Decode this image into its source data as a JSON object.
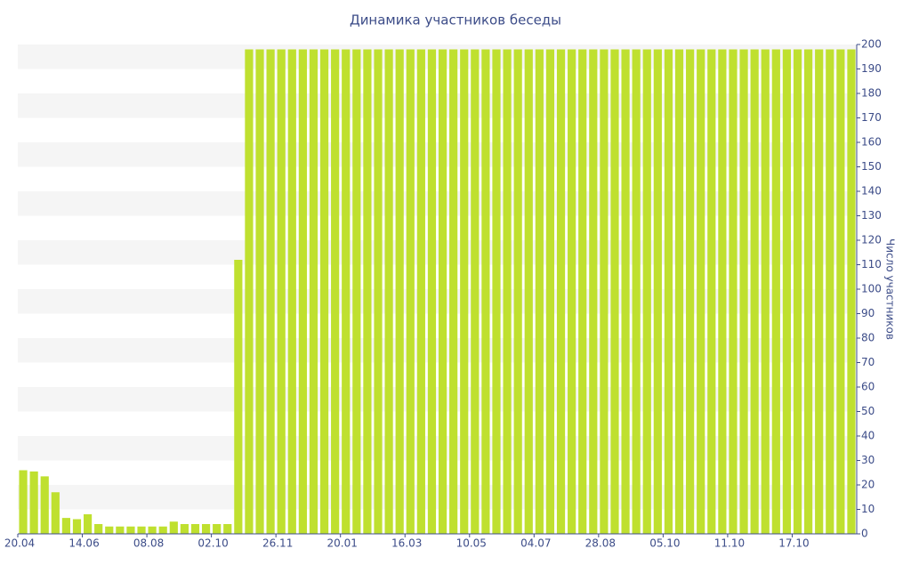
{
  "chart_data": {
    "type": "bar",
    "title": "Динамика участников беседы",
    "y_label": "Число участников",
    "categories": [
      "20.04",
      null,
      null,
      null,
      null,
      null,
      "14.06",
      null,
      null,
      null,
      null,
      null,
      "08.08",
      null,
      null,
      null,
      null,
      null,
      "02.10",
      null,
      null,
      null,
      null,
      null,
      "26.11",
      null,
      null,
      null,
      null,
      null,
      "20.01",
      null,
      null,
      null,
      null,
      null,
      "16.03",
      null,
      null,
      null,
      null,
      null,
      "10.05",
      null,
      null,
      null,
      null,
      null,
      "04.07",
      null,
      null,
      null,
      null,
      null,
      "28.08",
      null,
      null,
      null,
      null,
      null,
      "05.10",
      null,
      null,
      null,
      null,
      null,
      "11.10",
      null,
      null,
      null,
      null,
      null,
      "17.10",
      null,
      null,
      null,
      null,
      null
    ],
    "values": [
      26,
      25.5,
      23.5,
      17,
      6.5,
      6,
      8,
      4,
      3,
      3,
      3,
      3,
      3,
      3,
      5,
      4,
      4,
      4,
      4,
      4,
      112,
      198,
      198,
      198,
      198,
      198,
      198,
      198,
      198,
      198,
      198,
      198,
      198,
      198,
      198,
      198,
      198,
      198,
      198,
      198,
      198,
      198,
      198,
      198,
      198,
      198,
      198,
      198,
      198,
      198,
      198,
      198,
      198,
      198,
      198,
      198,
      198,
      198,
      198,
      198,
      198,
      198,
      198,
      198,
      198,
      198,
      198,
      198,
      198,
      198,
      198,
      198,
      198,
      198,
      198,
      198,
      198,
      198
    ],
    "color": "#bfe02f",
    "ylim": [
      0,
      200
    ],
    "yticks": [
      0,
      10,
      20,
      30,
      40,
      50,
      60,
      70,
      80,
      90,
      100,
      110,
      120,
      130,
      140,
      150,
      160,
      170,
      180,
      190,
      200
    ],
    "grid": "bands",
    "band_color": "#f5f5f5",
    "y_axis_side": "right"
  }
}
